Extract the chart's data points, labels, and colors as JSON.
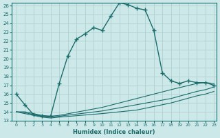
{
  "xlabel": "Humidex (Indice chaleur)",
  "xlim": [
    -0.5,
    23.3
  ],
  "ylim": [
    13,
    26.3
  ],
  "yticks": [
    13,
    14,
    15,
    16,
    17,
    18,
    19,
    20,
    21,
    22,
    23,
    24,
    25,
    26
  ],
  "xticks": [
    0,
    1,
    2,
    3,
    4,
    5,
    6,
    7,
    8,
    9,
    10,
    11,
    12,
    13,
    14,
    15,
    16,
    17,
    18,
    19,
    20,
    21,
    22,
    23
  ],
  "bg_color": "#cce8e8",
  "line_color": "#1a6b6b",
  "grid_color": "#aacccc",
  "lines": [
    {
      "x": [
        0,
        1,
        2,
        3,
        4,
        5,
        6,
        7,
        8,
        9,
        10,
        11,
        12,
        13,
        14,
        15,
        16,
        17,
        18,
        19,
        20,
        21,
        22,
        23
      ],
      "y": [
        16.0,
        14.8,
        13.7,
        13.5,
        13.5,
        17.2,
        20.3,
        22.2,
        22.8,
        23.5,
        23.2,
        24.8,
        26.3,
        26.1,
        25.7,
        25.5,
        23.2,
        18.4,
        17.5,
        17.2,
        17.5,
        17.3,
        17.3,
        17.0
      ],
      "marker": true
    },
    {
      "x": [
        0,
        1,
        2,
        3,
        4,
        5,
        10,
        14,
        18,
        21,
        22,
        23
      ],
      "y": [
        14.0,
        14.0,
        13.8,
        13.6,
        13.5,
        13.6,
        14.5,
        15.5,
        16.5,
        17.2,
        17.3,
        17.2
      ],
      "marker": false
    },
    {
      "x": [
        0,
        1,
        2,
        3,
        4,
        5,
        10,
        14,
        18,
        21,
        22,
        23
      ],
      "y": [
        14.0,
        13.9,
        13.7,
        13.5,
        13.4,
        13.5,
        14.1,
        14.8,
        15.5,
        16.3,
        16.5,
        16.8
      ],
      "marker": false
    },
    {
      "x": [
        0,
        1,
        2,
        3,
        4,
        5,
        10,
        14,
        18,
        21,
        22,
        23
      ],
      "y": [
        14.0,
        13.8,
        13.6,
        13.4,
        13.3,
        13.4,
        13.8,
        14.2,
        15.0,
        15.8,
        16.0,
        16.3
      ],
      "marker": false
    }
  ]
}
